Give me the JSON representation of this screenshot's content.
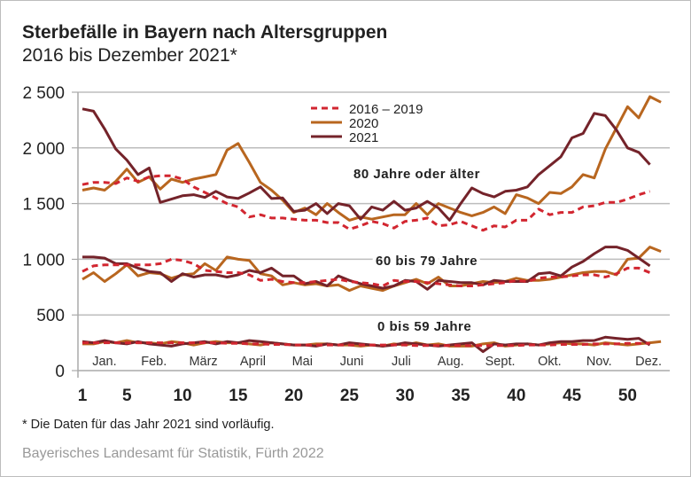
{
  "title": "Sterbefälle in Bayern nach Altersgruppen",
  "subtitle": "2016 bis Dezember 2021*",
  "footnote": "* Die Daten für das Jahr 2021 sind vorläufig.",
  "source": "Bayerisches Landesamt für Statistik, Fürth 2022",
  "chart_data": {
    "type": "line",
    "xlabel": "",
    "ylabel": "",
    "xlim": [
      1,
      53
    ],
    "ylim": [
      0,
      2500
    ],
    "yticks": [
      0,
      500,
      1000,
      1500,
      2000,
      2500
    ],
    "ytick_labels": [
      "0",
      "500",
      "1 000",
      "1 500",
      "2 000",
      "2 500"
    ],
    "xticks": [
      1,
      5,
      10,
      15,
      20,
      25,
      30,
      35,
      40,
      45,
      50
    ],
    "months": [
      "Jan.",
      "Feb.",
      "März",
      "April",
      "Mai",
      "Juni",
      "Juli",
      "Aug.",
      "Sept.",
      "Okt.",
      "Nov.",
      "Dez."
    ],
    "grid": true,
    "legend_placement": "top-center",
    "legend": [
      {
        "name": "2016 – 2019",
        "color": "#d22630",
        "style": "dashed"
      },
      {
        "name": "2020",
        "color": "#b8661f",
        "style": "solid"
      },
      {
        "name": "2021",
        "color": "#74232a",
        "style": "solid"
      }
    ],
    "group_labels": [
      "80 Jahre oder älter",
      "60 bis 79 Jahre",
      "0 bis 59 Jahre"
    ],
    "groups": [
      {
        "label": "80 Jahre oder älter",
        "series": [
          {
            "name": "2016 – 2019",
            "values": [
              1670,
              1690,
              1690,
              1680,
              1730,
              1700,
              1740,
              1750,
              1750,
              1720,
              1650,
              1600,
              1550,
              1500,
              1470,
              1380,
              1400,
              1370,
              1370,
              1360,
              1350,
              1350,
              1330,
              1330,
              1270,
              1300,
              1340,
              1320,
              1280,
              1340,
              1350,
              1370,
              1300,
              1310,
              1340,
              1300,
              1260,
              1300,
              1290,
              1350,
              1350,
              1450,
              1400,
              1420,
              1420,
              1470,
              1480,
              1510,
              1510,
              1540,
              1580,
              1610
            ]
          },
          {
            "name": "2020",
            "values": [
              1620,
              1640,
              1620,
              1700,
              1810,
              1690,
              1740,
              1630,
              1720,
              1690,
              1720,
              1740,
              1760,
              1980,
              2040,
              1870,
              1690,
              1620,
              1530,
              1420,
              1460,
              1400,
              1500,
              1420,
              1350,
              1380,
              1360,
              1380,
              1400,
              1400,
              1500,
              1400,
              1500,
              1460,
              1420,
              1390,
              1420,
              1470,
              1410,
              1580,
              1550,
              1500,
              1600,
              1590,
              1650,
              1760,
              1730,
              1990,
              2180,
              2370,
              2270,
              2460,
              2410
            ]
          },
          {
            "name": "2021",
            "values": [
              2350,
              2330,
              2170,
              1990,
              1890,
              1760,
              1820,
              1510,
              1540,
              1570,
              1580,
              1555,
              1610,
              1560,
              1545,
              1595,
              1650,
              1545,
              1550,
              1430,
              1440,
              1500,
              1410,
              1500,
              1480,
              1360,
              1470,
              1440,
              1520,
              1440,
              1460,
              1520,
              1460,
              1350,
              1500,
              1640,
              1590,
              1560,
              1610,
              1620,
              1650,
              1760,
              1840,
              1920,
              2090,
              2130,
              2310,
              2290,
              2160,
              2000,
              1960,
              1850
            ]
          }
        ]
      },
      {
        "label": "60 bis 79 Jahre",
        "series": [
          {
            "name": "2016 – 2019",
            "values": [
              890,
              940,
              950,
              950,
              950,
              950,
              950,
              960,
              1000,
              990,
              960,
              900,
              890,
              880,
              880,
              860,
              810,
              820,
              800,
              790,
              790,
              800,
              810,
              820,
              800,
              790,
              780,
              760,
              810,
              800,
              800,
              790,
              780,
              770,
              760,
              760,
              770,
              780,
              790,
              810,
              800,
              830,
              840,
              840,
              850,
              860,
              860,
              840,
              870,
              920,
              920,
              880
            ]
          },
          {
            "name": "2020",
            "values": [
              820,
              880,
              800,
              870,
              950,
              850,
              880,
              870,
              830,
              860,
              870,
              960,
              900,
              1020,
              1000,
              990,
              870,
              850,
              770,
              790,
              770,
              780,
              760,
              770,
              720,
              760,
              740,
              720,
              760,
              790,
              820,
              780,
              840,
              760,
              760,
              780,
              800,
              790,
              800,
              830,
              810,
              810,
              820,
              840,
              860,
              880,
              890,
              890,
              860,
              1000,
              1010,
              1110,
              1070
            ]
          },
          {
            "name": "2021",
            "values": [
              1020,
              1020,
              1010,
              960,
              960,
              920,
              890,
              880,
              800,
              870,
              840,
              860,
              860,
              840,
              860,
              900,
              880,
              920,
              850,
              850,
              780,
              800,
              760,
              850,
              810,
              780,
              760,
              740,
              760,
              810,
              800,
              730,
              810,
              800,
              790,
              790,
              770,
              810,
              800,
              800,
              800,
              870,
              880,
              850,
              930,
              980,
              1050,
              1110,
              1110,
              1080,
              1010,
              940
            ]
          }
        ]
      },
      {
        "label": "0 bis 59 Jahre",
        "series": [
          {
            "name": "2016 – 2019",
            "values": [
              250,
              250,
              250,
              250,
              250,
              250,
              250,
              250,
              250,
              250,
              250,
              250,
              250,
              245,
              245,
              240,
              240,
              235,
              235,
              230,
              230,
              230,
              230,
              230,
              230,
              230,
              230,
              230,
              230,
              230,
              225,
              225,
              225,
              225,
              225,
              225,
              225,
              225,
              225,
              225,
              230,
              230,
              230,
              235,
              235,
              235,
              240,
              240,
              240,
              245,
              245,
              245
            ]
          },
          {
            "name": "2020",
            "values": [
              240,
              240,
              260,
              250,
              270,
              250,
              250,
              240,
              260,
              250,
              230,
              250,
              260,
              250,
              250,
              240,
              230,
              250,
              240,
              230,
              230,
              240,
              240,
              230,
              230,
              220,
              230,
              220,
              240,
              230,
              250,
              230,
              240,
              220,
              220,
              220,
              240,
              250,
              220,
              230,
              240,
              230,
              240,
              250,
              240,
              240,
              230,
              250,
              240,
              230,
              240,
              250,
              260
            ]
          },
          {
            "name": "2021",
            "values": [
              260,
              250,
              270,
              250,
              240,
              260,
              240,
              230,
              220,
              240,
              250,
              260,
              240,
              260,
              250,
              270,
              260,
              250,
              240,
              230,
              230,
              220,
              240,
              230,
              250,
              240,
              230,
              220,
              230,
              250,
              240,
              230,
              220,
              230,
              240,
              250,
              170,
              240,
              230,
              240,
              240,
              230,
              250,
              260,
              260,
              270,
              270,
              300,
              290,
              280,
              290,
              230
            ]
          }
        ]
      }
    ]
  }
}
